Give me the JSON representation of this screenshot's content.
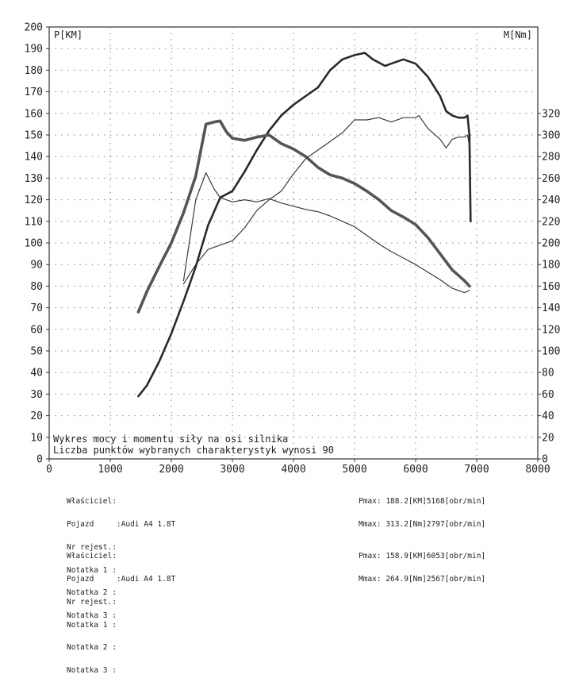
{
  "chart_data": {
    "type": "line",
    "left_axis_label": "P[KM]",
    "right_axis_label": "M[Nm]",
    "x_ticks": [
      0,
      1000,
      2000,
      3000,
      4000,
      5000,
      6000,
      7000,
      8000
    ],
    "left_ticks": [
      0,
      10,
      20,
      30,
      40,
      50,
      60,
      70,
      80,
      90,
      100,
      110,
      120,
      130,
      140,
      150,
      160,
      170,
      180,
      190,
      200
    ],
    "right_ticks": [
      0,
      20,
      40,
      60,
      80,
      100,
      120,
      140,
      160,
      180,
      200,
      220,
      240,
      260,
      280,
      300,
      320
    ],
    "xlim": [
      0,
      8000
    ],
    "left_ylim": [
      0,
      200
    ],
    "right_ylim": [
      0,
      400
    ],
    "grid": true,
    "captions": [
      "Wykres mocy i momentu siły na osi silnika",
      "Liczba punktów wybranych charakterystyk wynosi 90"
    ],
    "series": [
      {
        "axis": "left",
        "color": "#2a2a2a",
        "width": 2.6,
        "x": [
          1460,
          1600,
          1800,
          2000,
          2200,
          2400,
          2600,
          2800,
          3000,
          3200,
          3400,
          3600,
          3800,
          4000,
          4200,
          4400,
          4600,
          4800,
          5000,
          5168,
          5300,
          5500,
          5600,
          5800,
          6000,
          6200,
          6400,
          6500,
          6600,
          6700,
          6800,
          6850,
          6880,
          6900
        ],
        "y": [
          29,
          34,
          45,
          58,
          73,
          89,
          108,
          121,
          124,
          133,
          143,
          152,
          159,
          164,
          168,
          172,
          180,
          185,
          187,
          188,
          185,
          182,
          183,
          185,
          183,
          177,
          168,
          161,
          159,
          158,
          158,
          159,
          150,
          110
        ]
      },
      {
        "axis": "right",
        "color": "#555555",
        "width": 3.6,
        "x": [
          1460,
          1600,
          1800,
          2000,
          2200,
          2400,
          2567,
          2700,
          2797,
          2900,
          3000,
          3200,
          3400,
          3600,
          3800,
          4000,
          4200,
          4400,
          4600,
          4800,
          5000,
          5200,
          5400,
          5600,
          5800,
          6000,
          6200,
          6400,
          6600,
          6700,
          6800,
          6850,
          6880
        ],
        "y": [
          136,
          155,
          178,
          200,
          228,
          262,
          310,
          312,
          313,
          303,
          297,
          295,
          298,
          300,
          292,
          287,
          280,
          270,
          263,
          260,
          255,
          248,
          240,
          230,
          224,
          217,
          205,
          190,
          175,
          170,
          165,
          162,
          160
        ]
      },
      {
        "axis": "left",
        "color": "#3a3a3a",
        "width": 1.2,
        "x": [
          2200,
          2400,
          2600,
          2800,
          3000,
          3200,
          3400,
          3600,
          3800,
          4000,
          4200,
          4400,
          4600,
          4800,
          5000,
          5200,
          5400,
          5600,
          5800,
          6000,
          6053,
          6200,
          6400,
          6500,
          6600,
          6700,
          6800,
          6850,
          6880
        ],
        "y": [
          81,
          90,
          97,
          99,
          101,
          107,
          115,
          120,
          124,
          132,
          139,
          143,
          147,
          151,
          157,
          157,
          158,
          156,
          158,
          158,
          159,
          153,
          148,
          144,
          148,
          149,
          149,
          150,
          145
        ]
      },
      {
        "axis": "right",
        "color": "#3a3a3a",
        "width": 1.2,
        "x": [
          2200,
          2400,
          2567,
          2700,
          2800,
          3000,
          3200,
          3400,
          3600,
          3800,
          4000,
          4200,
          4400,
          4600,
          4800,
          5000,
          5200,
          5400,
          5600,
          5800,
          6000,
          6200,
          6400,
          6600,
          6800,
          6880
        ],
        "y": [
          165,
          240,
          265,
          250,
          242,
          238,
          240,
          238,
          241,
          237,
          234,
          231,
          229,
          225,
          220,
          215,
          207,
          199,
          192,
          186,
          180,
          173,
          166,
          158,
          154,
          156
        ]
      }
    ]
  },
  "info_blocks": [
    {
      "owner_label": "Właściciel:",
      "vehicle_label": "Pojazd     :",
      "vehicle_value": "Audi A4 1.8T",
      "reg_label": "Nr rejest.:",
      "note1": "Notatka 1 :",
      "note2": "Notatka 2 :",
      "note3": "Notatka 3 :",
      "pmax": "Pmax: 188.2[KM]5168[obr/min]",
      "mmax": "Mmax: 313.2[Nm]2797[obr/min]"
    },
    {
      "owner_label": "Właściciel:",
      "vehicle_label": "Pojazd     :",
      "vehicle_value": "Audi A4 1.8T",
      "reg_label": "Nr rejest.:",
      "note1": "Notatka 1 :",
      "note2": "Notatka 2 :",
      "note3": "Notatka 3 :",
      "pmax": "Pmax: 158.9[KM]6053[obr/min]",
      "mmax": "Mmax: 264.9[Nm]2567[obr/min]"
    }
  ]
}
